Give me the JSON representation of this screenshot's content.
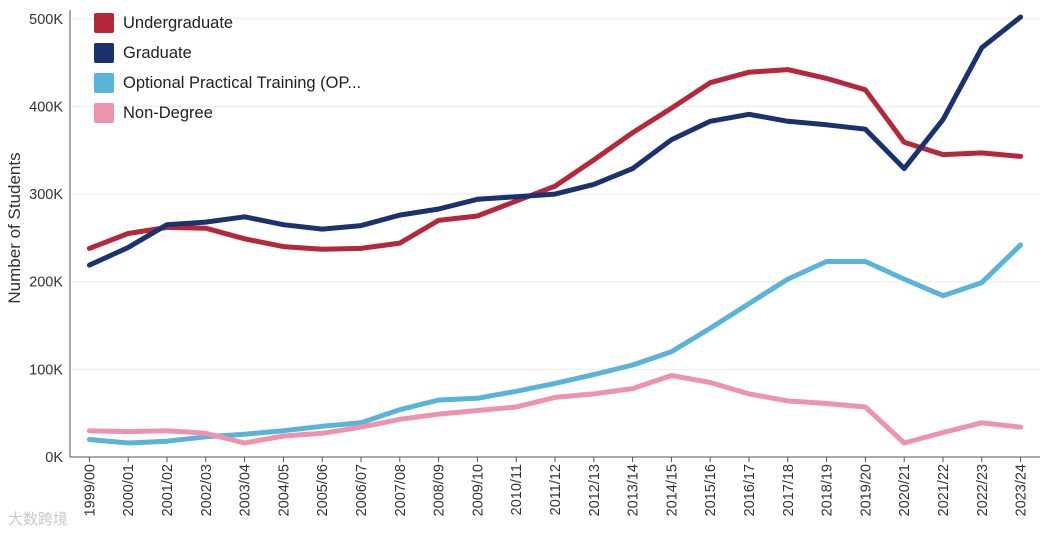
{
  "chart_data": {
    "type": "line",
    "title": "",
    "xlabel": "",
    "ylabel": "Number of Students",
    "ylim": [
      0,
      510000
    ],
    "yticks": [
      {
        "value": 0,
        "label": "0K"
      },
      {
        "value": 100000,
        "label": "100K"
      },
      {
        "value": 200000,
        "label": "200K"
      },
      {
        "value": 300000,
        "label": "300K"
      },
      {
        "value": 400000,
        "label": "400K"
      },
      {
        "value": 500000,
        "label": "500K"
      }
    ],
    "grid": true,
    "legend_position": "top-left",
    "categories": [
      "1999/00",
      "2000/01",
      "2001/02",
      "2002/03",
      "2003/04",
      "2004/05",
      "2005/06",
      "2006/07",
      "2007/08",
      "2008/09",
      "2009/10",
      "2010/11",
      "2011/12",
      "2012/13",
      "2013/14",
      "2014/15",
      "2015/16",
      "2016/17",
      "2017/18",
      "2018/19",
      "2019/20",
      "2020/21",
      "2021/22",
      "2022/23",
      "2023/24"
    ],
    "series": [
      {
        "name": "Undergraduate",
        "color": "#b5273a",
        "values": [
          238000,
          255000,
          262000,
          261000,
          249000,
          240000,
          237000,
          238000,
          244000,
          270000,
          275000,
          292000,
          309000,
          339000,
          370000,
          398000,
          427000,
          439000,
          442000,
          432000,
          419000,
          359000,
          345000,
          347000,
          343000
        ]
      },
      {
        "name": "Graduate",
        "color": "#1b3270",
        "values": [
          219000,
          239000,
          265000,
          268000,
          274000,
          265000,
          260000,
          264000,
          276000,
          283000,
          294000,
          297000,
          300000,
          311000,
          329000,
          362000,
          383000,
          391000,
          383000,
          379000,
          374000,
          329000,
          385000,
          467000,
          502000
        ]
      },
      {
        "name": "Optional Practical Training (OP...",
        "color": "#5ab4da",
        "values": [
          20000,
          16000,
          18000,
          23000,
          26000,
          30000,
          35000,
          39000,
          54000,
          65000,
          67000,
          75000,
          84000,
          94000,
          105000,
          120000,
          147000,
          175000,
          203000,
          223000,
          223000,
          203000,
          184000,
          199000,
          242000
        ]
      },
      {
        "name": "Non-Degree",
        "color": "#ee93ad",
        "values": [
          30000,
          29000,
          30000,
          27000,
          16000,
          24000,
          27000,
          34000,
          43000,
          49000,
          53000,
          57000,
          68000,
          72000,
          78000,
          93000,
          85000,
          72000,
          64000,
          61000,
          57000,
          16000,
          28000,
          39000,
          34000
        ]
      }
    ]
  },
  "watermark": "大数跨境"
}
